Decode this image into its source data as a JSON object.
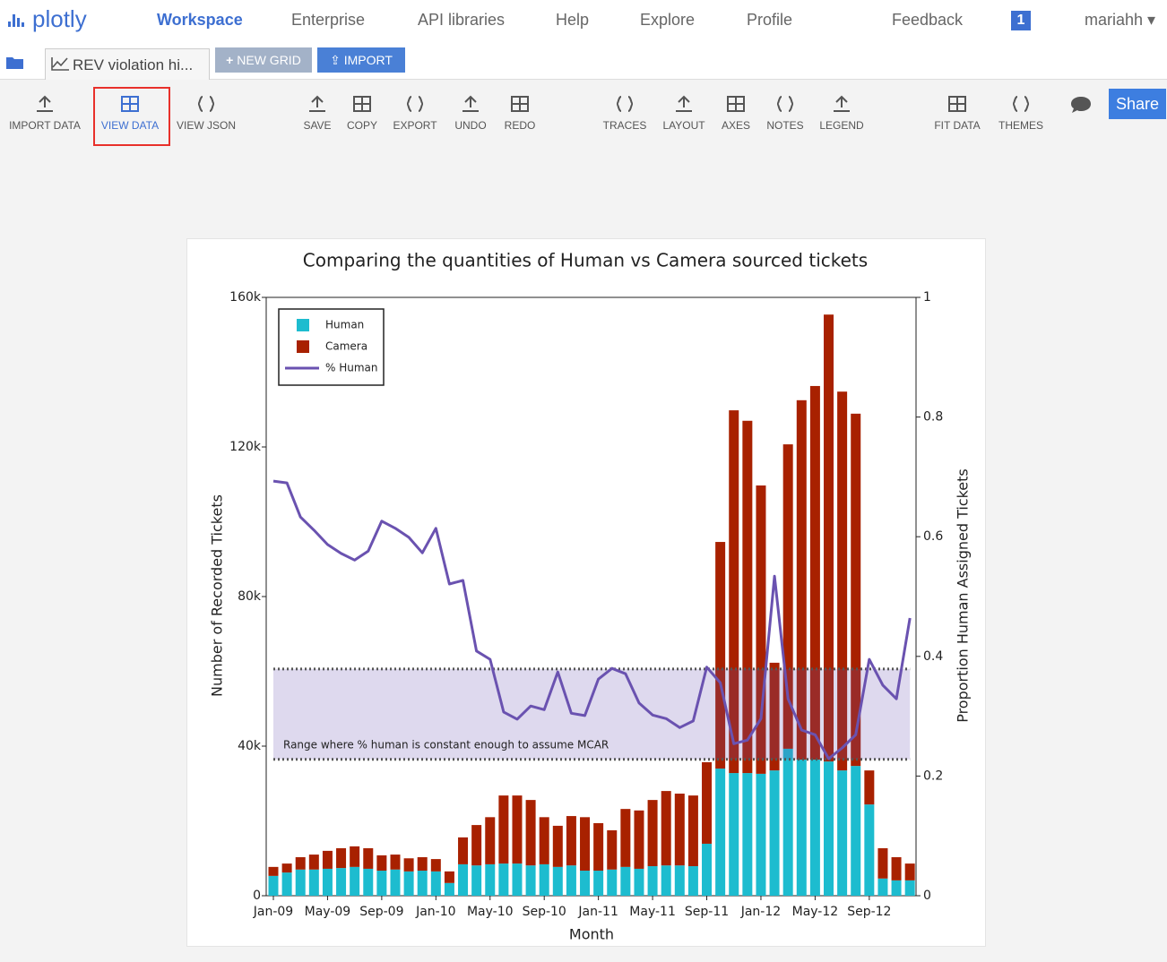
{
  "nav": {
    "logo": "plotly",
    "links": [
      "Workspace",
      "Enterprise",
      "API libraries",
      "Help",
      "Explore",
      "Profile",
      "Feedback"
    ],
    "badge": "1",
    "user": "mariahh"
  },
  "tabs": {
    "file": "REV violation hi...",
    "new_grid": "NEW GRID",
    "import": "IMPORT"
  },
  "toolbar": [
    "IMPORT DATA",
    "VIEW DATA",
    "VIEW JSON",
    "SAVE",
    "COPY",
    "EXPORT",
    "UNDO",
    "REDO",
    "TRACES",
    "LAYOUT",
    "AXES",
    "NOTES",
    "LEGEND",
    "FIT DATA",
    "THEMES"
  ],
  "share": "Share",
  "chart_data": {
    "type": "bar",
    "stacked": true,
    "title": "Comparing the quantities of Human vs Camera sourced tickets",
    "x_label": "Month",
    "y_label": "Number of Recorded Tickets",
    "y2_label": "Proportion Human Assigned Tickets",
    "categories": [
      "Jan-09",
      null,
      null,
      null,
      "May-09",
      null,
      null,
      null,
      "Sep-09",
      null,
      null,
      null,
      "Jan-10",
      null,
      null,
      null,
      "May-10",
      null,
      null,
      null,
      "Sep-10",
      null,
      null,
      null,
      "Jan-11",
      null,
      null,
      null,
      "May-11",
      null,
      null,
      null,
      "Sep-11",
      null,
      null,
      null,
      "Jan-12",
      null,
      null,
      null,
      "May-12",
      null,
      null,
      null,
      "Sep-12",
      null,
      null,
      null
    ],
    "series": [
      {
        "name": "Human",
        "color": "#1dbccf",
        "values": [
          5300,
          6200,
          7000,
          7000,
          7200,
          7400,
          7700,
          7200,
          6700,
          7000,
          6500,
          6700,
          6500,
          3400,
          8400,
          8100,
          8400,
          8600,
          8600,
          8100,
          8400,
          7700,
          8100,
          6700,
          6700,
          7000,
          7700,
          7200,
          7900,
          8100,
          8100,
          7900,
          13900,
          34000,
          32800,
          32800,
          32600,
          33500,
          39300,
          36400,
          36400,
          35900,
          33500,
          34700,
          24400,
          4600,
          4100,
          4100
        ]
      },
      {
        "name": "Camera",
        "color": "#a82100",
        "values": [
          2400,
          2400,
          3300,
          4000,
          4800,
          5300,
          5500,
          5500,
          4100,
          4000,
          3500,
          3600,
          3300,
          3100,
          7200,
          10800,
          12600,
          18200,
          18200,
          17500,
          12600,
          11000,
          13200,
          14300,
          12700,
          10500,
          15500,
          15600,
          17700,
          19900,
          19200,
          18900,
          21800,
          60600,
          97000,
          94200,
          77100,
          28800,
          81400,
          96100,
          99900,
          119500,
          101300,
          94200,
          9100,
          8100,
          6200,
          4500
        ]
      },
      {
        "name": "% Human",
        "type": "line",
        "axis": "y2",
        "color": "#6a52b0",
        "values": [
          0.693,
          0.69,
          0.633,
          0.611,
          0.587,
          0.572,
          0.561,
          0.576,
          0.626,
          0.614,
          0.599,
          0.573,
          0.614,
          0.521,
          0.527,
          0.409,
          0.395,
          0.307,
          0.295,
          0.317,
          0.311,
          0.374,
          0.305,
          0.301,
          0.362,
          0.38,
          0.371,
          0.322,
          0.302,
          0.296,
          0.281,
          0.292,
          0.382,
          0.356,
          0.254,
          0.26,
          0.296,
          0.534,
          0.329,
          0.277,
          0.269,
          0.229,
          0.247,
          0.269,
          0.395,
          0.352,
          0.329,
          0.464
        ]
      }
    ],
    "ylim": [
      0,
      160000
    ],
    "yticks": [
      0,
      {
        "value": 40000,
        "label": "40k"
      },
      {
        "value": 80000,
        "label": "80k"
      },
      {
        "value": 120000,
        "label": "120k"
      },
      {
        "value": 160000,
        "label": "160k"
      }
    ],
    "y2lim": [
      0,
      1
    ],
    "y2ticks": [
      0,
      0.2,
      0.4,
      0.6,
      0.8,
      1
    ],
    "band": {
      "y2": [
        0.228,
        0.379
      ],
      "label": "Range where % human is constant enough to assume MCAR"
    },
    "legend": "top-left"
  }
}
